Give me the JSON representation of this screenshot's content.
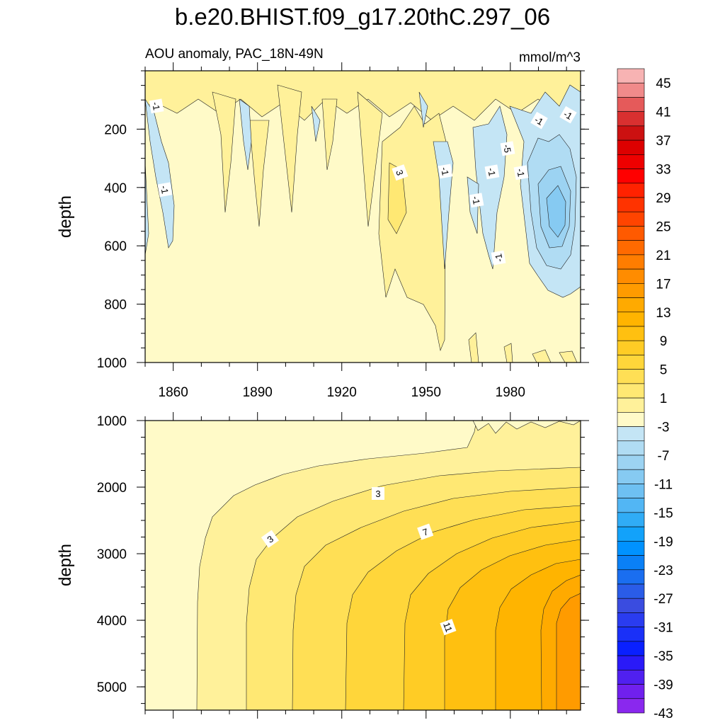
{
  "chart_data": {
    "type": "contour",
    "title": "b.e20.BHIST.f09_g17.20thC.297_06",
    "subtitle_left": "AOU anomaly, PAC_18N-49N",
    "subtitle_right": "mmol/m^3",
    "xlabel": "",
    "ylabel": "depth",
    "xticks": [
      "1860",
      "1890",
      "1920",
      "1950",
      "1980"
    ],
    "xlim": [
      1850,
      2005
    ],
    "upper_panel": {
      "ylim": [
        0,
        1000
      ],
      "yticks": [
        "200",
        "400",
        "600",
        "800",
        "1000"
      ],
      "contour_labels": [
        "-1",
        "3",
        "-1",
        "-1",
        "-1",
        "-1",
        "-5",
        "-1",
        "-1",
        "-1",
        "-1"
      ]
    },
    "lower_panel": {
      "ylim": [
        1000,
        5350
      ],
      "yticks": [
        "1000",
        "2000",
        "3000",
        "4000",
        "5000"
      ],
      "contour_labels": [
        "3",
        "3",
        "7",
        "11"
      ]
    },
    "colorbar": {
      "labels": [
        "45",
        "41",
        "37",
        "33",
        "29",
        "25",
        "21",
        "17",
        "13",
        "9",
        "5",
        "1",
        "-3",
        "-7",
        "-11",
        "-15",
        "-19",
        "-23",
        "-27",
        "-31",
        "-35",
        "-39",
        "-43"
      ],
      "colors": [
        "#f7b3b3",
        "#f08a8a",
        "#e55a5a",
        "#d93030",
        "#cc1111",
        "#dd0000",
        "#ee0000",
        "#ff0000",
        "#ff2200",
        "#ff3300",
        "#ff4400",
        "#ff5a00",
        "#ff6a00",
        "#ff7d00",
        "#ff8c00",
        "#ff9b00",
        "#ffaa00",
        "#ffb400",
        "#ffc010",
        "#ffcc25",
        "#ffd63a",
        "#ffdf55",
        "#ffe873",
        "#fff19a",
        "#fffac8",
        "#c4e5f5",
        "#b0dcf3",
        "#9cd3f2",
        "#86caf2",
        "#6ec0f2",
        "#52b6f4",
        "#30acf6",
        "#12a2fa",
        "#0092ff",
        "#0a80f6",
        "#1a6ef0",
        "#2a5ce8",
        "#3a4ce0",
        "#2a3cf0",
        "#1a30f8",
        "#0a20ff",
        "#2a1af8",
        "#5020f0",
        "#7020ee",
        "#8a28ee"
      ]
    }
  }
}
